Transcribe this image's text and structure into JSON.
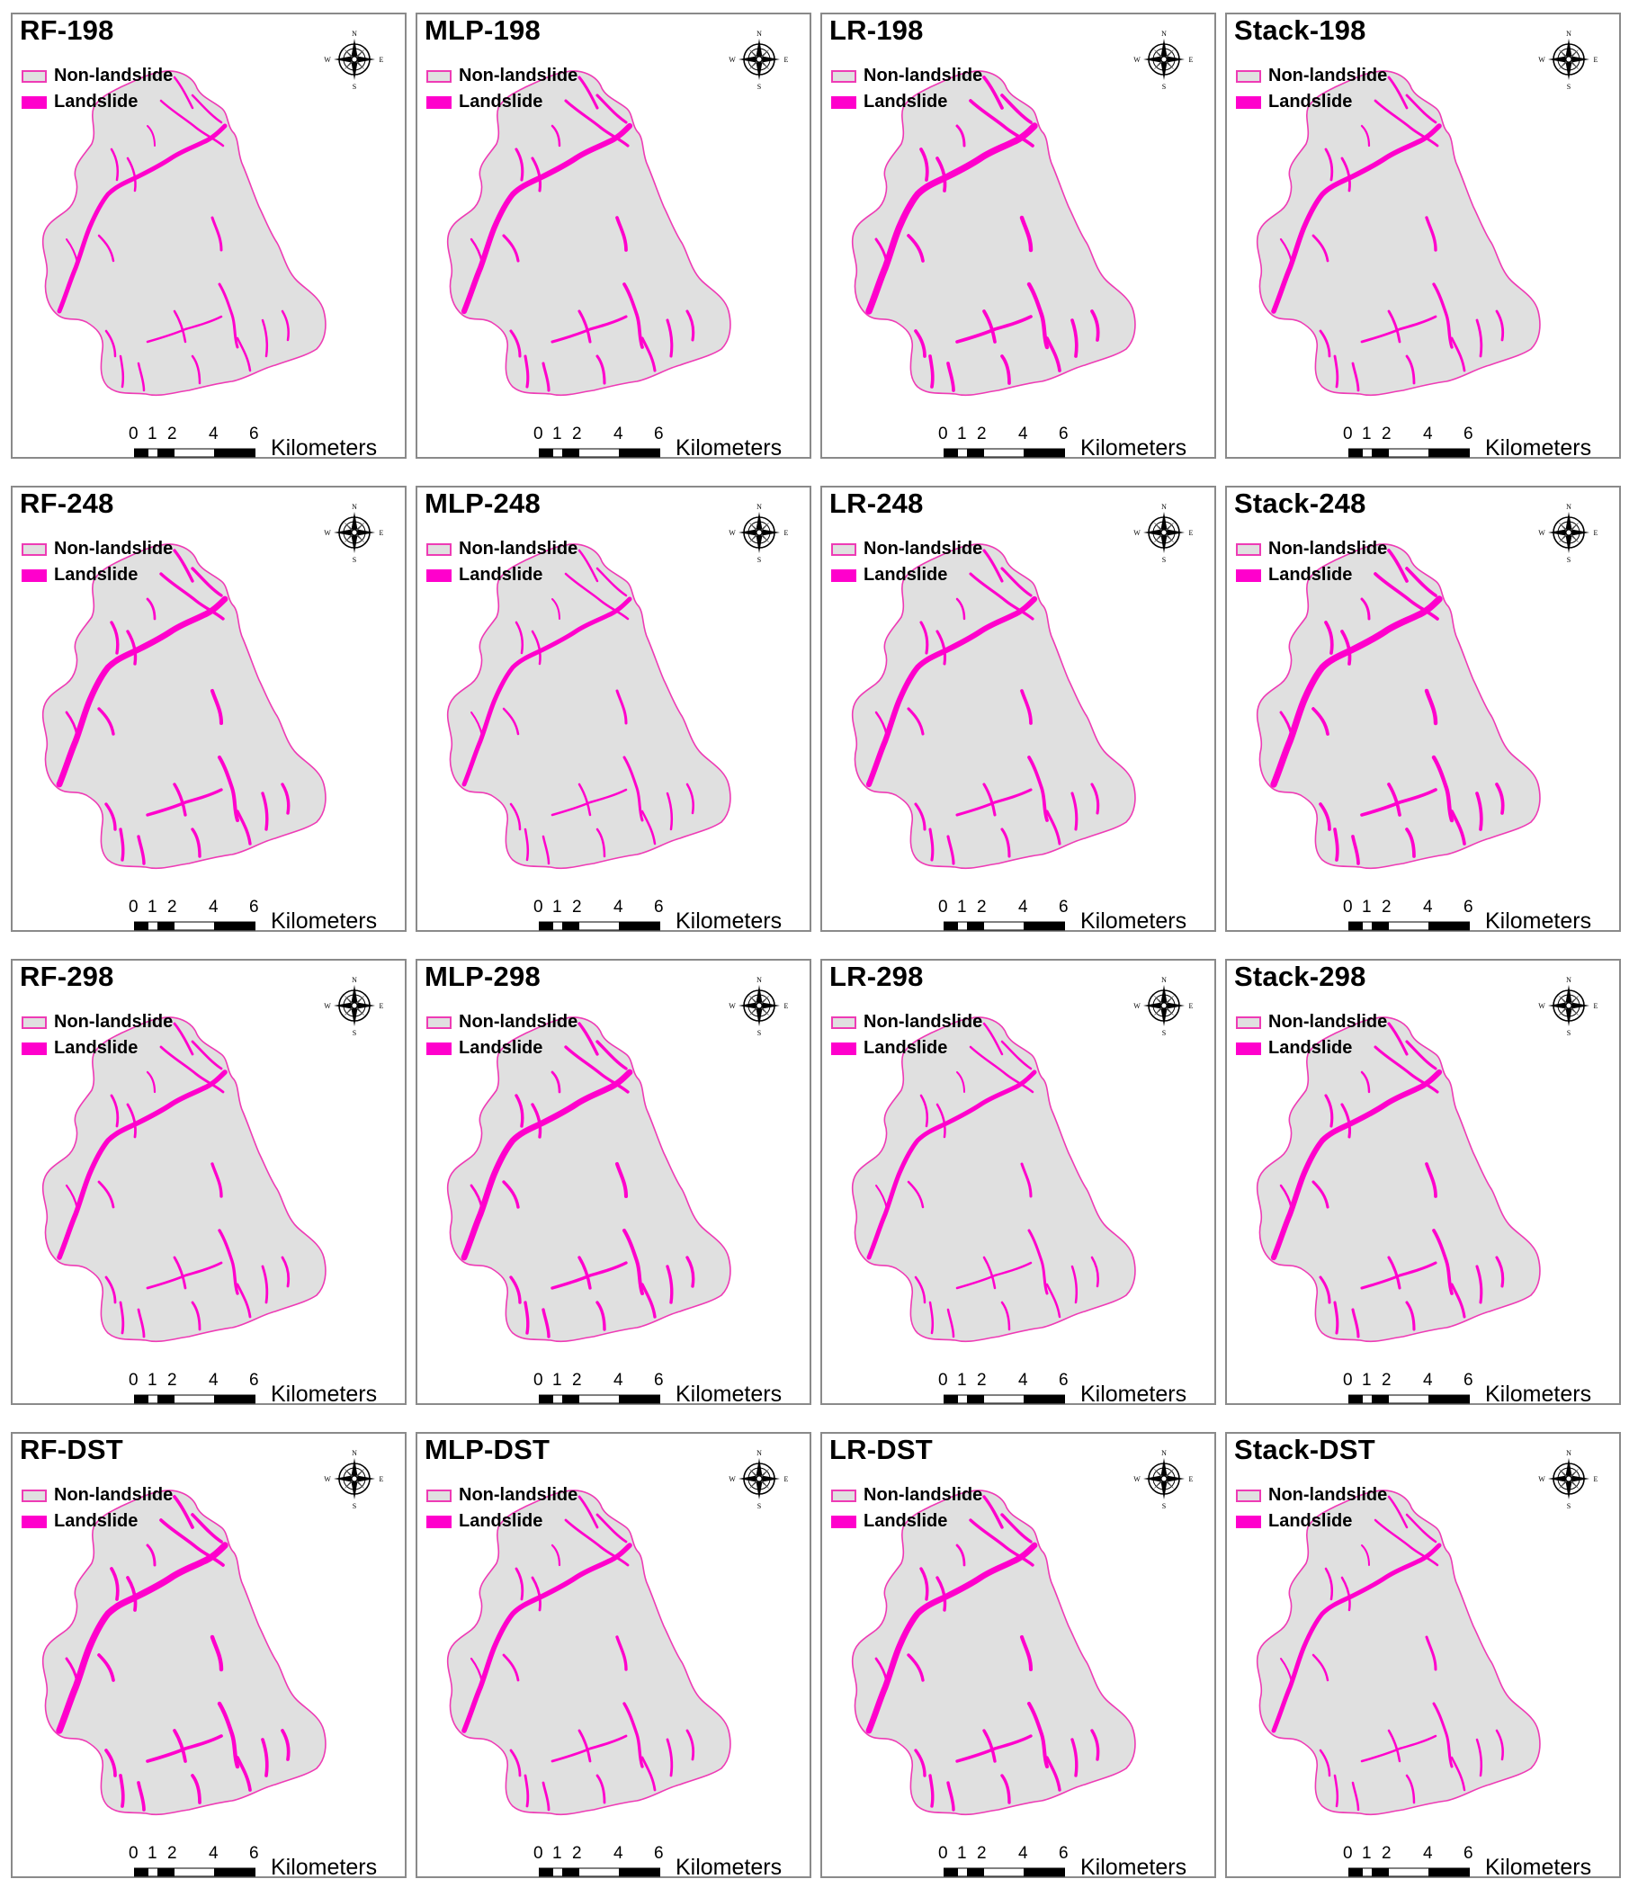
{
  "legend": {
    "non_landslide": "Non-landslide",
    "landslide": "Landslide"
  },
  "scale": {
    "ticks": [
      "0",
      "1",
      "2",
      "4",
      "6"
    ],
    "unit": "Kilometers"
  },
  "compass": {
    "n": "N",
    "s": "S",
    "e": "E",
    "w": "W",
    "icon": "north-arrow-compass-icon"
  },
  "colors": {
    "landslide": "#ff00cc",
    "non_landslide": "#e0e0e0",
    "boundary": "#ee3bb5"
  },
  "panels": [
    {
      "title": "RF-198"
    },
    {
      "title": "MLP-198"
    },
    {
      "title": "LR-198"
    },
    {
      "title": "Stack-198"
    },
    {
      "title": "RF-248"
    },
    {
      "title": "MLP-248"
    },
    {
      "title": "LR-248"
    },
    {
      "title": "Stack-248"
    },
    {
      "title": "RF-298"
    },
    {
      "title": "MLP-298"
    },
    {
      "title": "LR-298"
    },
    {
      "title": "Stack-298"
    },
    {
      "title": "RF-DST"
    },
    {
      "title": "MLP-DST"
    },
    {
      "title": "LR-DST"
    },
    {
      "title": "Stack-DST"
    }
  ]
}
